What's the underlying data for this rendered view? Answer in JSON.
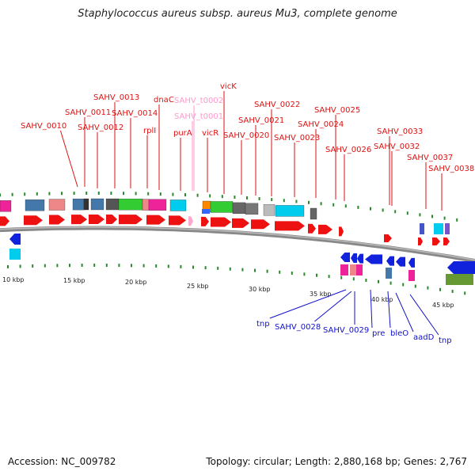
{
  "title": "Staphylococcus aureus subsp. aureus Mu3, complete genome",
  "footer": {
    "accession": "Accession: NC_009782",
    "stats": "Topology: circular; Length: 2,880,168 bp; Genes: 2,767"
  },
  "colors": {
    "forward_label": "#dd1111",
    "trna_label": "#ff99cc",
    "reverse_label": "#1111cc",
    "cds_red": "#ee1111",
    "cds_blue": "#1122dd",
    "backbone": "#777777"
  },
  "top_labels": [
    {
      "text": "SAHV_0010",
      "kind": "cds"
    },
    {
      "text": "SAHV_0011",
      "kind": "cds"
    },
    {
      "text": "SAHV_0012",
      "kind": "cds"
    },
    {
      "text": "SAHV_0013",
      "kind": "cds"
    },
    {
      "text": "SAHV_0014",
      "kind": "cds"
    },
    {
      "text": "rplI",
      "kind": "cds"
    },
    {
      "text": "dnaC",
      "kind": "cds"
    },
    {
      "text": "purA",
      "kind": "cds"
    },
    {
      "text": "SAHV_t0002",
      "kind": "trna"
    },
    {
      "text": "SAHV_t0001",
      "kind": "trna"
    },
    {
      "text": "vicR",
      "kind": "cds"
    },
    {
      "text": "vicK",
      "kind": "cds"
    },
    {
      "text": "SAHV_0020",
      "kind": "cds"
    },
    {
      "text": "SAHV_0021",
      "kind": "cds"
    },
    {
      "text": "SAHV_0022",
      "kind": "cds"
    },
    {
      "text": "SAHV_0023",
      "kind": "cds"
    },
    {
      "text": "SAHV_0024",
      "kind": "cds"
    },
    {
      "text": "SAHV_0025",
      "kind": "cds"
    },
    {
      "text": "SAHV_0026",
      "kind": "cds"
    },
    {
      "text": "SAHV_0033",
      "kind": "cds"
    },
    {
      "text": "SAHV_0032",
      "kind": "cds"
    },
    {
      "text": "SAHV_0037",
      "kind": "cds"
    },
    {
      "text": "SAHV_0038",
      "kind": "cds"
    }
  ],
  "bottom_labels": [
    {
      "text": "tnp"
    },
    {
      "text": "SAHV_0028"
    },
    {
      "text": "SAHV_0029"
    },
    {
      "text": "pre"
    },
    {
      "text": "bleO"
    },
    {
      "text": "aadD"
    },
    {
      "text": "tnp"
    }
  ],
  "scale_labels": [
    "10 kbp",
    "15 kbp",
    "20 kbp",
    "25 kbp",
    "30 kbp",
    "35 kbp",
    "40 kbp",
    "45 kbp"
  ]
}
